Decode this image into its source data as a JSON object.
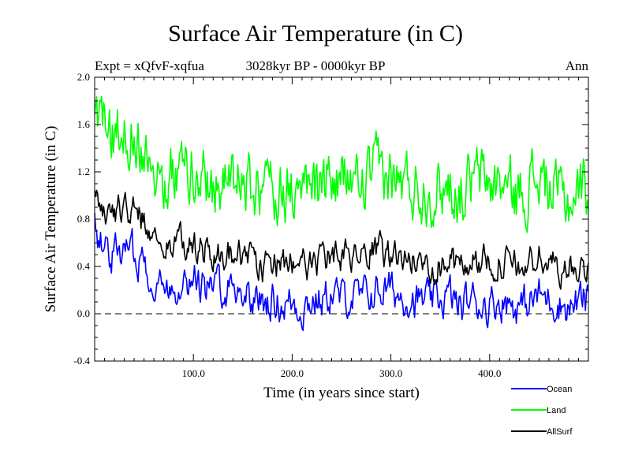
{
  "header": {
    "title": "Surface Air Temperature (in C)",
    "experiment": "Expt = xQfvF-xqfua",
    "period": "3028kyr BP - 0000kyr BP",
    "season": "Ann"
  },
  "chart_data": {
    "type": "line",
    "title": "Surface Air Temperature (in C)",
    "xlabel": "Time (in years since start)",
    "ylabel": "Surface Air Temperature (in C)",
    "xlim": [
      0,
      500
    ],
    "ylim": [
      -0.4,
      2.0
    ],
    "xticks": [
      100,
      200,
      300,
      400
    ],
    "xtick_labels": [
      "100.0",
      "200.0",
      "300.0",
      "400.0"
    ],
    "yticks": [
      -0.4,
      0.0,
      0.4,
      0.8,
      1.2,
      1.6,
      2.0
    ],
    "ytick_labels": [
      "-0.4",
      "0.0",
      "0.4",
      "0.8",
      "1.2",
      "1.6",
      "2.0"
    ],
    "zero_line": 0.0,
    "legend_position": "bottom-right",
    "series": [
      {
        "name": "Ocean",
        "color": "#0000ff",
        "x": [
          0,
          10,
          20,
          30,
          40,
          50,
          60,
          70,
          80,
          90,
          100,
          110,
          120,
          130,
          140,
          150,
          160,
          170,
          180,
          190,
          200,
          210,
          220,
          230,
          240,
          250,
          260,
          270,
          280,
          290,
          300,
          310,
          320,
          330,
          340,
          350,
          360,
          370,
          380,
          390,
          400,
          410,
          420,
          430,
          440,
          450,
          460,
          470,
          480,
          490,
          500
        ],
        "values": [
          0.75,
          0.55,
          0.5,
          0.55,
          0.5,
          0.45,
          0.3,
          0.2,
          0.25,
          0.3,
          0.3,
          0.25,
          0.2,
          0.25,
          0.22,
          0.2,
          0.15,
          0.08,
          0.12,
          0.08,
          0.1,
          0.05,
          0.12,
          0.1,
          0.18,
          0.12,
          0.15,
          0.12,
          0.18,
          0.2,
          0.2,
          0.15,
          0.15,
          0.1,
          0.1,
          0.12,
          0.15,
          0.05,
          0.12,
          0.1,
          0.08,
          0.12,
          0.1,
          0.05,
          0.1,
          0.15,
          0.12,
          0.1,
          0.05,
          0.1,
          0.12
        ]
      },
      {
        "name": "Land",
        "color": "#00ff00",
        "x": [
          0,
          10,
          20,
          30,
          40,
          50,
          60,
          70,
          80,
          90,
          100,
          110,
          120,
          130,
          140,
          150,
          160,
          170,
          180,
          190,
          200,
          210,
          220,
          230,
          240,
          250,
          260,
          270,
          280,
          290,
          300,
          310,
          320,
          330,
          340,
          350,
          360,
          370,
          380,
          390,
          400,
          410,
          420,
          430,
          440,
          450,
          460,
          470,
          480,
          490,
          500
        ],
        "values": [
          1.55,
          1.6,
          1.55,
          1.6,
          1.5,
          1.45,
          1.25,
          1.15,
          1.2,
          1.25,
          1.2,
          1.15,
          1.1,
          1.15,
          1.1,
          1.1,
          1.05,
          1.0,
          1.1,
          1.05,
          1.05,
          1.0,
          1.1,
          1.05,
          1.15,
          1.1,
          1.15,
          1.1,
          1.15,
          1.2,
          1.15,
          1.1,
          1.1,
          1.05,
          1.05,
          1.05,
          1.1,
          1.0,
          1.1,
          1.15,
          1.1,
          1.1,
          1.05,
          1.0,
          1.1,
          1.15,
          1.05,
          1.0,
          0.95,
          1.05,
          1.1
        ]
      },
      {
        "name": "AllSurf",
        "color": "#000000",
        "x": [
          0,
          10,
          20,
          30,
          40,
          50,
          60,
          70,
          80,
          90,
          100,
          110,
          120,
          130,
          140,
          150,
          160,
          170,
          180,
          190,
          200,
          210,
          220,
          230,
          240,
          250,
          260,
          270,
          280,
          290,
          300,
          310,
          320,
          330,
          340,
          350,
          360,
          370,
          380,
          390,
          400,
          410,
          420,
          430,
          440,
          450,
          460,
          470,
          480,
          490,
          500
        ],
        "values": [
          1.0,
          0.9,
          0.85,
          0.9,
          0.85,
          0.8,
          0.65,
          0.55,
          0.6,
          0.6,
          0.6,
          0.55,
          0.5,
          0.55,
          0.5,
          0.5,
          0.45,
          0.4,
          0.45,
          0.4,
          0.45,
          0.4,
          0.45,
          0.42,
          0.5,
          0.45,
          0.48,
          0.45,
          0.5,
          0.52,
          0.5,
          0.48,
          0.45,
          0.42,
          0.42,
          0.42,
          0.45,
          0.38,
          0.45,
          0.45,
          0.42,
          0.45,
          0.42,
          0.38,
          0.42,
          0.48,
          0.42,
          0.4,
          0.35,
          0.4,
          0.42
        ]
      }
    ]
  }
}
